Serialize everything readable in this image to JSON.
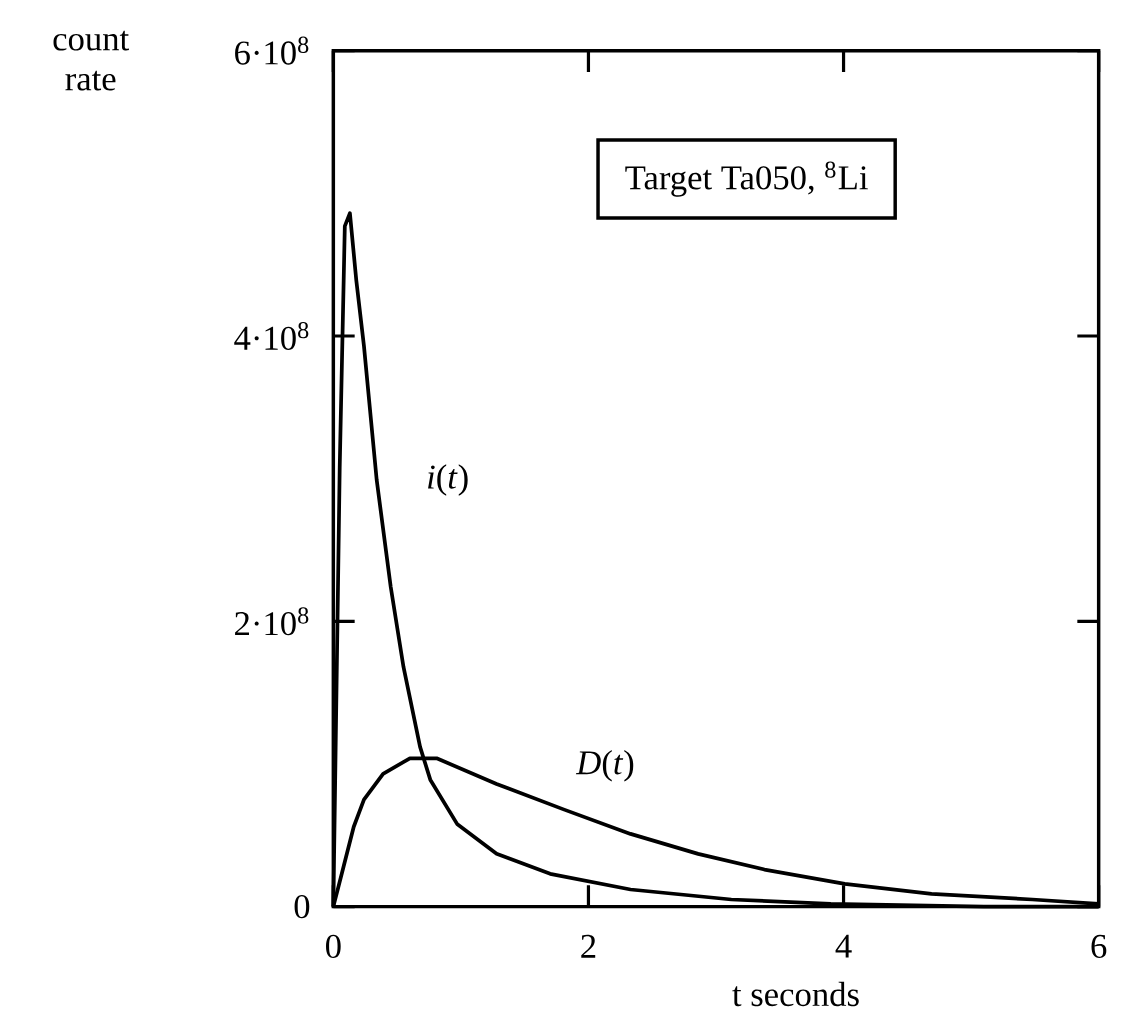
{
  "chart_data": {
    "type": "line",
    "xlabel": "t   seconds",
    "ylabel": "count rate",
    "annotations": [
      "Target Ta050, $^{8}$Li"
    ],
    "xlim": [
      0,
      6
    ],
    "ylim": [
      0,
      600000000
    ],
    "xticks": [
      0,
      2,
      4,
      6
    ],
    "yticks": [
      0,
      {
        "value": 200000000,
        "label": "2·10$^{8}$"
      },
      {
        "value": 400000000,
        "label": "4·10$^{8}$"
      },
      {
        "value": 600000000,
        "label": "6·10$^{8}$"
      }
    ],
    "series": [
      {
        "name": "*i*(*t*)",
        "color": "#000000",
        "x": [
          0,
          0.05,
          0.09,
          0.13,
          0.18,
          0.24,
          0.34,
          0.45,
          0.55,
          0.68,
          0.76,
          0.97,
          1.28,
          1.7,
          2.33,
          3.12,
          3.9,
          5.1,
          6
        ],
        "values": [
          0,
          308000000,
          477000000,
          486000000,
          439000000,
          393000000,
          299000000,
          224000000,
          168000000,
          112000000,
          89000000,
          58000000,
          37000000,
          23000000,
          12000000,
          5000000,
          2000000,
          0,
          0
        ]
      },
      {
        "name": "*D*(*t*)",
        "color": "#000000",
        "x": [
          0,
          0.08,
          0.16,
          0.24,
          0.39,
          0.6,
          0.81,
          1.28,
          1.81,
          2.33,
          2.86,
          3.38,
          4.01,
          4.69,
          5.48,
          6
        ],
        "values": [
          0,
          28000000,
          56000000,
          75000000,
          93000000,
          104000000,
          104000000,
          86000000,
          68000000,
          51000000,
          37000000,
          26000000,
          16000000,
          9000000,
          5000000,
          2000000
        ]
      }
    ]
  }
}
